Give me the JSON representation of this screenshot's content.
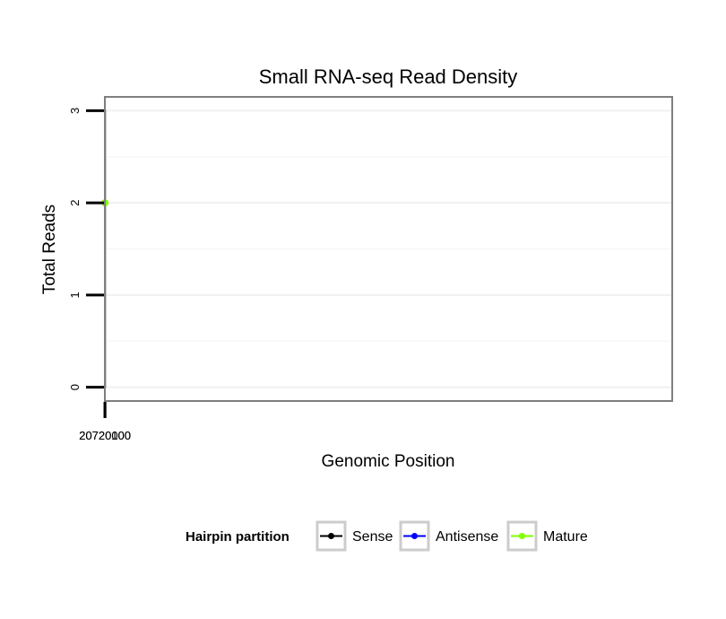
{
  "chart_data": {
    "type": "line",
    "title": "Small RNA-seq Read Density",
    "xlabel": "Genomic Position",
    "ylabel": "Total Reads",
    "x_reversed": true,
    "xlim": [
      20720225,
      19719925
    ],
    "xlim_note": "reversed genomic axis (minus strand)",
    "ylim": [
      -0.15,
      3.15
    ],
    "x_ticks": [
      {
        "value": 20720100,
        "label": "20720100"
      },
      {
        "value": 20720000,
        "label": "20720000"
      }
    ],
    "y_ticks": [
      {
        "value": 0,
        "label": "0"
      },
      {
        "value": 1,
        "label": "1"
      },
      {
        "value": 2,
        "label": "2"
      },
      {
        "value": 3,
        "label": "3"
      }
    ],
    "grid": true,
    "legend": {
      "title": "Hairpin partition",
      "position": "bottom",
      "entries": [
        {
          "name": "Sense",
          "color": "#000000"
        },
        {
          "name": "Antisense",
          "color": "#0000ff"
        },
        {
          "name": "Mature",
          "color": "#7fff00"
        }
      ]
    },
    "series": [
      {
        "name": "Sense",
        "color": "#000000",
        "points": [
          [
            20720212,
            0
          ],
          [
            20720093,
            0
          ],
          [
            20720092,
            2
          ],
          [
            20720078,
            2
          ],
          [
            20720077,
            0
          ],
          [
            20720011,
            0
          ],
          [
            20720010,
            1
          ],
          [
            20720003,
            1
          ],
          [
            20720002,
            2
          ],
          [
            20719996,
            2
          ],
          [
            20719995,
            3
          ],
          [
            20719985,
            3
          ],
          [
            20719984,
            1
          ],
          [
            20719972,
            1
          ],
          [
            20719971,
            0
          ],
          [
            20719963,
            0
          ]
        ]
      },
      {
        "name": "Antisense",
        "color": "#0000ff",
        "segments": [
          [
            [
              20720092,
              0
            ],
            [
              20720077,
              0
            ]
          ],
          [
            [
              20720010,
              0
            ],
            [
              20719971,
              0
            ]
          ]
        ]
      },
      {
        "name": "Mature",
        "color": "#7fff00",
        "points": [
          [
            20720091,
            2
          ],
          [
            20720078,
            2
          ]
        ]
      }
    ]
  }
}
